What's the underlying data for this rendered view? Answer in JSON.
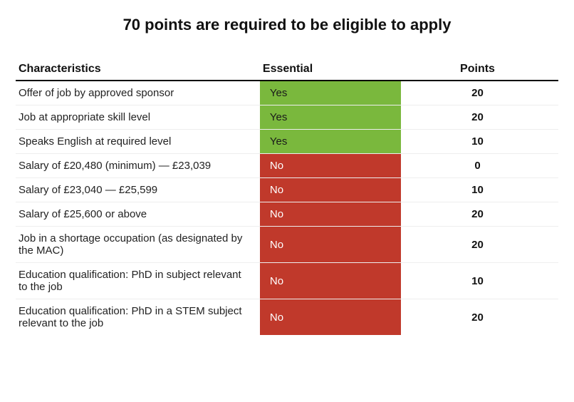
{
  "title": "70 points are required to be eligible to apply",
  "title_fontsize": 22,
  "table": {
    "type": "table",
    "columns": [
      "Characteristics",
      "Essential",
      "Points"
    ],
    "column_widths_pct": [
      45,
      26,
      29
    ],
    "header_fontsize": 16,
    "header_border_color": "#000000",
    "row_border_color": "#eeeeee",
    "body_fontsize": 15,
    "colors": {
      "yes_bg": "#7ab83d",
      "no_bg": "#c0392b",
      "yes_text": "#1a1a1a",
      "no_text": "#ffffff",
      "char_text": "#222222",
      "points_text": "#111111",
      "background": "#ffffff"
    },
    "rows": [
      {
        "characteristic": "Offer of job by approved sponsor",
        "essential": "Yes",
        "points": "20"
      },
      {
        "characteristic": "Job at appropriate skill level",
        "essential": "Yes",
        "points": "20"
      },
      {
        "characteristic": "Speaks English at required level",
        "essential": "Yes",
        "points": "10"
      },
      {
        "characteristic": "Salary of £20,480 (minimum) — £23,039",
        "essential": "No",
        "points": "0"
      },
      {
        "characteristic": "Salary of £23,040 — £25,599",
        "essential": "No",
        "points": "10"
      },
      {
        "characteristic": "Salary of £25,600 or above",
        "essential": "No",
        "points": "20"
      },
      {
        "characteristic": "Job in a shortage occupation (as designated by the MAC)",
        "essential": "No",
        "points": "20"
      },
      {
        "characteristic": "Education qualification: PhD in subject relevant to the job",
        "essential": "No",
        "points": "10"
      },
      {
        "characteristic": "Education qualification: PhD in a STEM subject relevant to the job",
        "essential": "No",
        "points": "20"
      }
    ]
  }
}
